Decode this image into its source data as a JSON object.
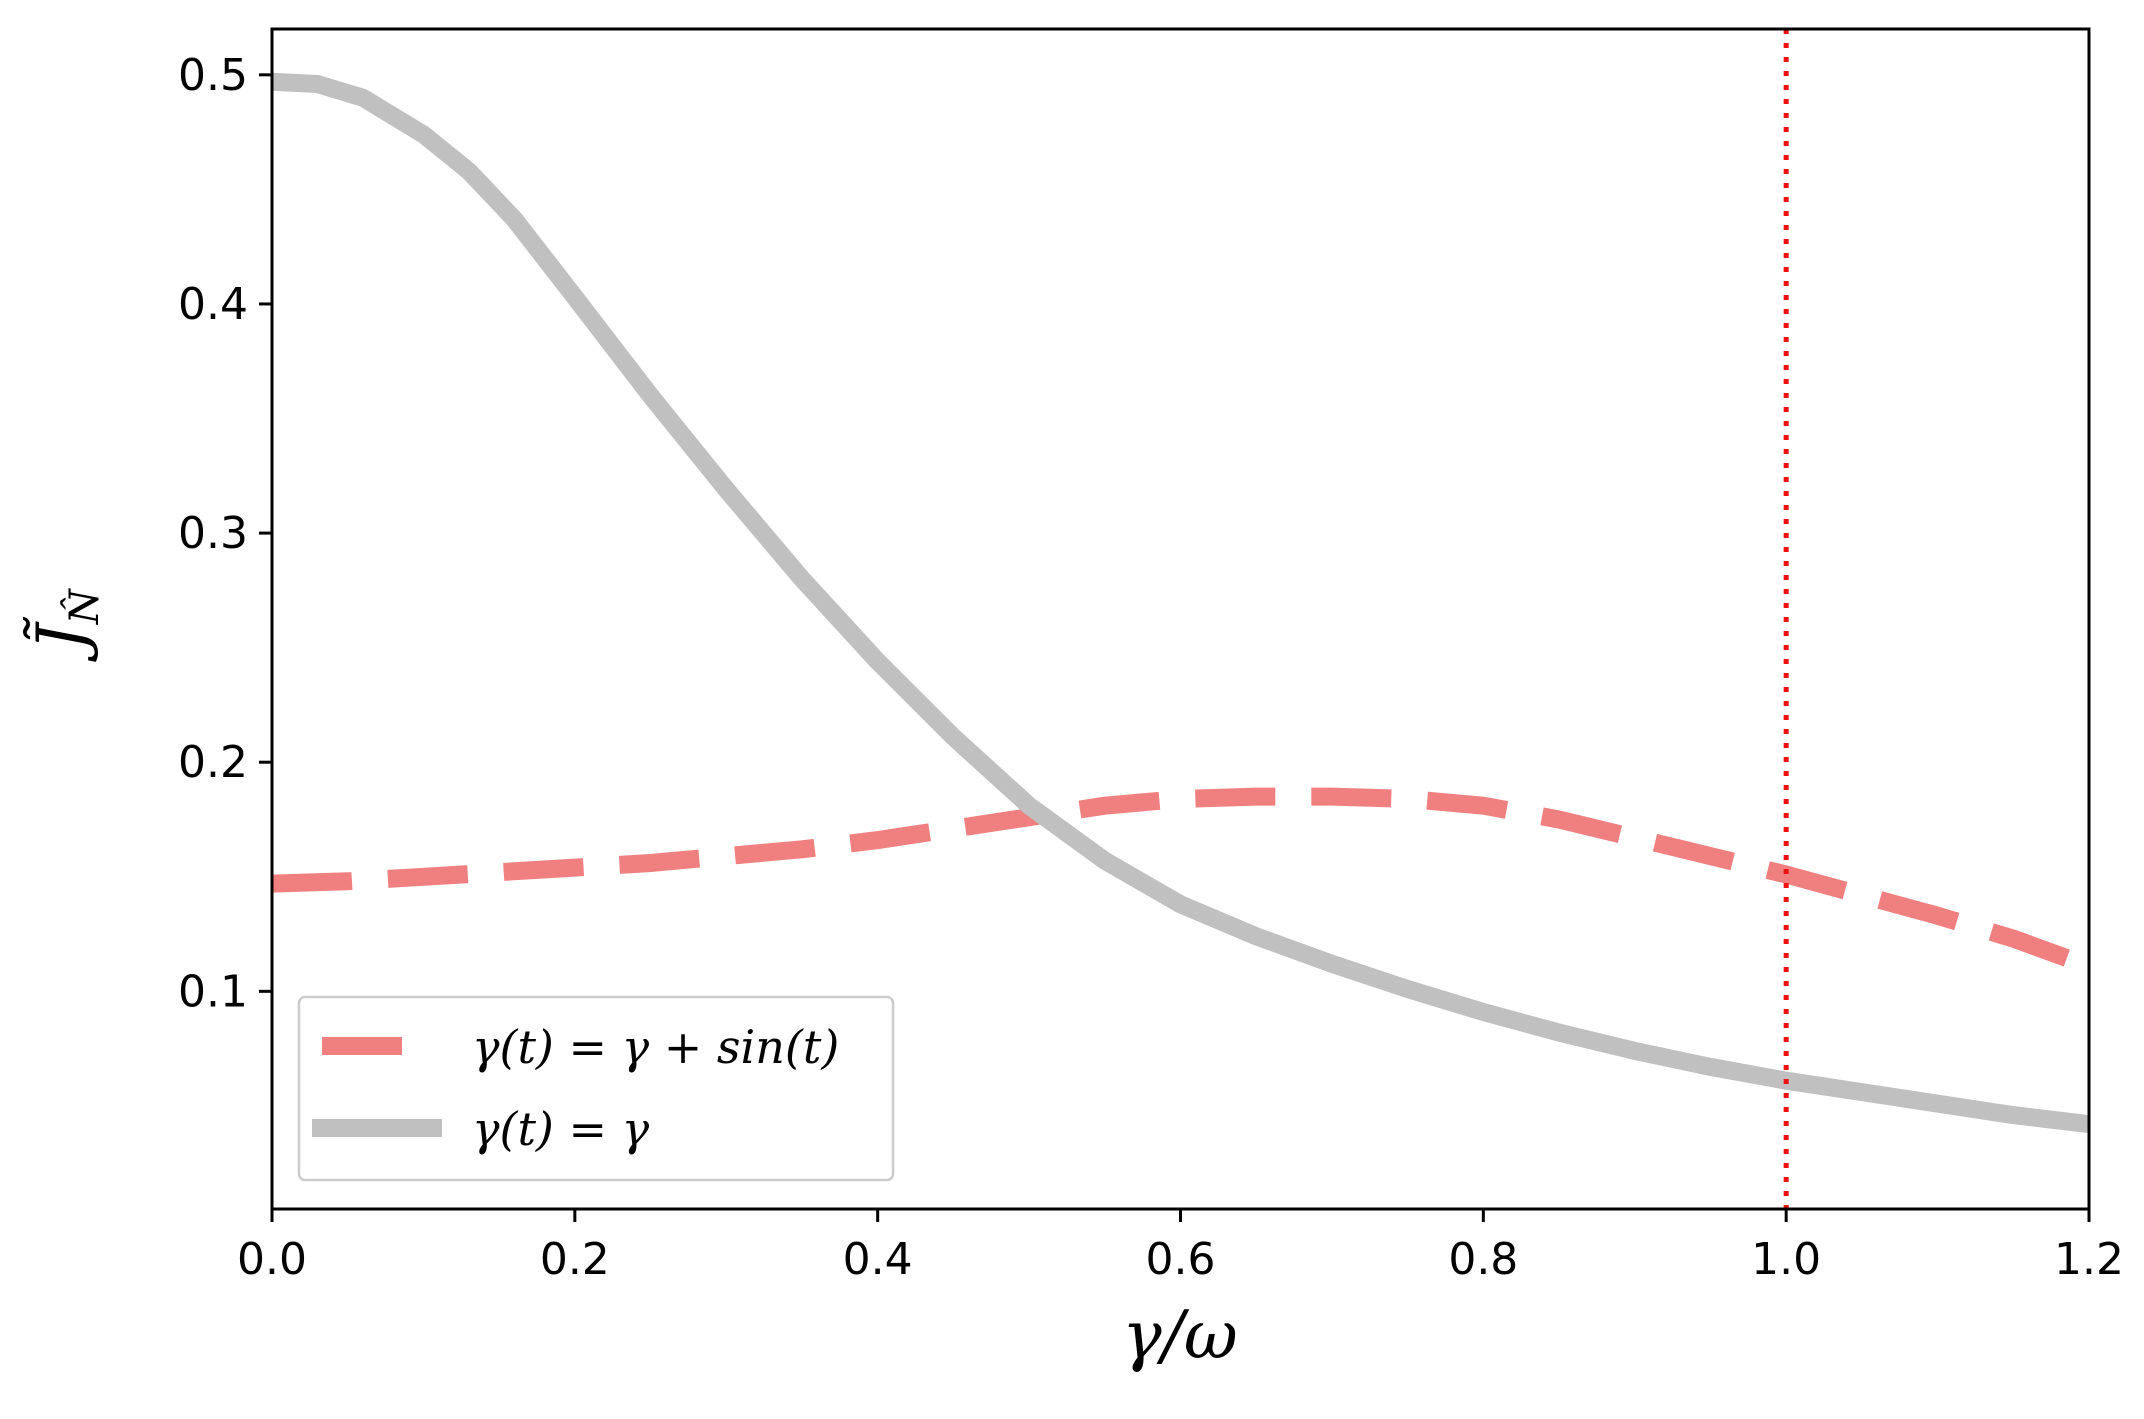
{
  "chart_data": {
    "type": "line",
    "title": "",
    "xlabel": "γ/ω",
    "ylabel": "J̃_N̂",
    "ylabel_main": "J̃",
    "ylabel_sub": "N̂",
    "xlim": [
      0.0,
      1.2
    ],
    "ylim": [
      0.005,
      0.52
    ],
    "xticks": [
      0.0,
      0.2,
      0.4,
      0.6,
      0.8,
      1.0,
      1.2
    ],
    "xtick_labels": [
      "0.0",
      "0.2",
      "0.4",
      "0.6",
      "0.8",
      "1.0",
      "1.2"
    ],
    "yticks": [
      0.1,
      0.2,
      0.3,
      0.4,
      0.5
    ],
    "ytick_labels": [
      "0.1",
      "0.2",
      "0.3",
      "0.4",
      "0.5"
    ],
    "grid": false,
    "legend_position": "lower-left",
    "vline": {
      "x": 1.0,
      "color": "#ee1111",
      "style": "dotted"
    },
    "series": [
      {
        "name": "γ(t) = γ + sin(t)",
        "color": "#f08080",
        "style": "dashed",
        "x": [
          0.0,
          0.05,
          0.1,
          0.15,
          0.2,
          0.25,
          0.3,
          0.35,
          0.4,
          0.45,
          0.5,
          0.55,
          0.6,
          0.65,
          0.7,
          0.75,
          0.8,
          0.85,
          0.9,
          0.95,
          1.0,
          1.05,
          1.1,
          1.15,
          1.2
        ],
        "y": [
          0.147,
          0.148,
          0.15,
          0.152,
          0.154,
          0.156,
          0.159,
          0.162,
          0.166,
          0.171,
          0.176,
          0.181,
          0.184,
          0.185,
          0.185,
          0.184,
          0.181,
          0.175,
          0.167,
          0.159,
          0.151,
          0.142,
          0.133,
          0.123,
          0.111
        ]
      },
      {
        "name": "γ(t) = γ",
        "color": "#c0c0c0",
        "style": "solid",
        "x": [
          0.0,
          0.03,
          0.06,
          0.08,
          0.1,
          0.13,
          0.16,
          0.2,
          0.25,
          0.3,
          0.35,
          0.4,
          0.45,
          0.5,
          0.55,
          0.6,
          0.65,
          0.7,
          0.75,
          0.8,
          0.85,
          0.9,
          0.95,
          1.0,
          1.05,
          1.1,
          1.15,
          1.2
        ],
        "y": [
          0.497,
          0.496,
          0.49,
          0.482,
          0.474,
          0.458,
          0.437,
          0.403,
          0.36,
          0.319,
          0.28,
          0.244,
          0.211,
          0.181,
          0.157,
          0.138,
          0.124,
          0.112,
          0.101,
          0.091,
          0.082,
          0.074,
          0.067,
          0.061,
          0.056,
          0.051,
          0.046,
          0.042
        ]
      }
    ]
  }
}
